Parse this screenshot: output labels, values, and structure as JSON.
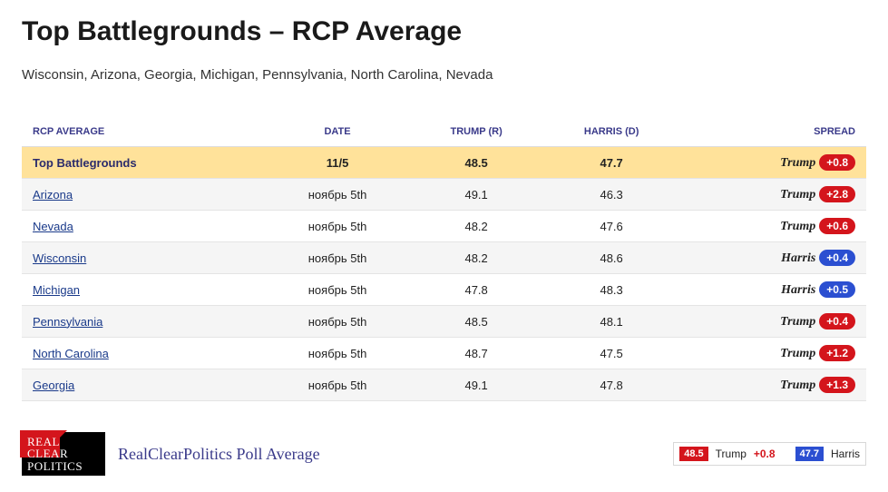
{
  "title": "Top Battlegrounds – RCP Average",
  "subtitle": "Wisconsin, Arizona, Georgia, Michigan, Pennsylvania, North Carolina, Nevada",
  "columns": [
    "RCP AVERAGE",
    "DATE",
    "TRUMP (R)",
    "HARRIS (D)",
    "SPREAD"
  ],
  "rows": [
    {
      "name": "Top Battlegrounds",
      "link": false,
      "highlight": true,
      "date": "11/5",
      "trump": "48.5",
      "harris": "47.7",
      "leader": "Trump",
      "party": "r",
      "margin": "+0.8"
    },
    {
      "name": "Arizona",
      "link": true,
      "highlight": false,
      "date": "ноябрь 5th",
      "trump": "49.1",
      "harris": "46.3",
      "leader": "Trump",
      "party": "r",
      "margin": "+2.8"
    },
    {
      "name": "Nevada",
      "link": true,
      "highlight": false,
      "date": "ноябрь 5th",
      "trump": "48.2",
      "harris": "47.6",
      "leader": "Trump",
      "party": "r",
      "margin": "+0.6"
    },
    {
      "name": "Wisconsin",
      "link": true,
      "highlight": false,
      "date": "ноябрь 5th",
      "trump": "48.2",
      "harris": "48.6",
      "leader": "Harris",
      "party": "d",
      "margin": "+0.4"
    },
    {
      "name": "Michigan",
      "link": true,
      "highlight": false,
      "date": "ноябрь 5th",
      "trump": "47.8",
      "harris": "48.3",
      "leader": "Harris",
      "party": "d",
      "margin": "+0.5"
    },
    {
      "name": "Pennsylvania",
      "link": true,
      "highlight": false,
      "date": "ноябрь 5th",
      "trump": "48.5",
      "harris": "48.1",
      "leader": "Trump",
      "party": "r",
      "margin": "+0.4"
    },
    {
      "name": "North Carolina",
      "link": true,
      "highlight": false,
      "date": "ноябрь 5th",
      "trump": "48.7",
      "harris": "47.5",
      "leader": "Trump",
      "party": "r",
      "margin": "+1.2"
    },
    {
      "name": "Georgia",
      "link": true,
      "highlight": false,
      "date": "ноябрь 5th",
      "trump": "49.1",
      "harris": "47.8",
      "leader": "Trump",
      "party": "r",
      "margin": "+1.3"
    }
  ],
  "footer": {
    "logo_lines": [
      "REAL",
      "CLEAR",
      "POLITICS"
    ],
    "caption": "RealClearPolitics Poll Average",
    "summary": {
      "trump_value": "48.5",
      "trump_label": "Trump",
      "trump_margin": "+0.8",
      "harris_value": "47.7",
      "harris_label": "Harris"
    }
  },
  "colors": {
    "rep": "#d4151c",
    "dem": "#2b4fd1",
    "highlight_row": "#ffe29a"
  }
}
